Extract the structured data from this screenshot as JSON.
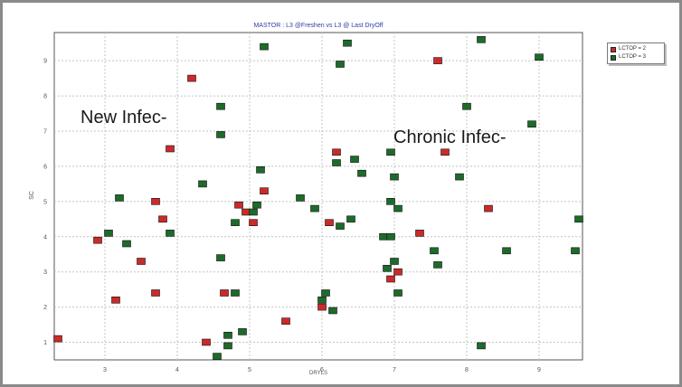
{
  "chart_data": {
    "type": "scatter",
    "title": "MASTOR : L3 @Freshen vs L3 @ Last DryOff",
    "xlabel": "DRYLS",
    "ylabel": "SC",
    "xlim": [
      2.3,
      9.6
    ],
    "ylim": [
      0.5,
      9.8
    ],
    "x_ticks": [
      "3",
      "4",
      "5",
      "6",
      "7",
      "8",
      "9"
    ],
    "y_ticks": [
      "1",
      "2",
      "3",
      "4",
      "5",
      "6",
      "7",
      "8",
      "9"
    ],
    "grid": true,
    "legend_position": "top-right",
    "series": [
      {
        "name": "LCTOP = 2",
        "color": "#cc2a2a",
        "points": [
          [
            2.35,
            1.1
          ],
          [
            2.9,
            3.9
          ],
          [
            3.15,
            2.2
          ],
          [
            3.5,
            3.3
          ],
          [
            3.7,
            2.4
          ],
          [
            3.7,
            5.0
          ],
          [
            3.8,
            4.5
          ],
          [
            3.9,
            6.5
          ],
          [
            4.2,
            8.5
          ],
          [
            4.4,
            1.0
          ],
          [
            4.65,
            2.4
          ],
          [
            4.85,
            4.9
          ],
          [
            4.95,
            4.7
          ],
          [
            5.05,
            4.4
          ],
          [
            5.2,
            5.3
          ],
          [
            5.5,
            1.6
          ],
          [
            6.0,
            2.0
          ],
          [
            6.1,
            4.4
          ],
          [
            6.2,
            6.4
          ],
          [
            6.95,
            2.8
          ],
          [
            7.05,
            3.0
          ],
          [
            7.35,
            4.1
          ],
          [
            7.6,
            9.0
          ],
          [
            7.7,
            6.4
          ],
          [
            8.3,
            4.8
          ]
        ]
      },
      {
        "name": "LCTOP = 3",
        "color": "#1d6b2a",
        "points": [
          [
            3.05,
            4.1
          ],
          [
            3.2,
            5.1
          ],
          [
            3.3,
            3.8
          ],
          [
            3.9,
            4.1
          ],
          [
            4.35,
            5.5
          ],
          [
            4.55,
            0.6
          ],
          [
            4.6,
            3.4
          ],
          [
            4.6,
            6.9
          ],
          [
            4.6,
            7.7
          ],
          [
            4.7,
            0.9
          ],
          [
            4.7,
            1.2
          ],
          [
            4.8,
            2.4
          ],
          [
            4.8,
            4.4
          ],
          [
            4.9,
            1.3
          ],
          [
            5.05,
            4.7
          ],
          [
            5.1,
            4.9
          ],
          [
            5.15,
            5.9
          ],
          [
            5.2,
            9.4
          ],
          [
            5.7,
            5.1
          ],
          [
            5.9,
            4.8
          ],
          [
            6.0,
            2.2
          ],
          [
            6.05,
            2.4
          ],
          [
            6.15,
            1.9
          ],
          [
            6.2,
            6.1
          ],
          [
            6.25,
            4.3
          ],
          [
            6.25,
            8.9
          ],
          [
            6.35,
            9.5
          ],
          [
            6.4,
            4.5
          ],
          [
            6.45,
            6.2
          ],
          [
            6.55,
            5.8
          ],
          [
            6.85,
            4.0
          ],
          [
            6.9,
            3.1
          ],
          [
            6.95,
            4.0
          ],
          [
            6.95,
            5.0
          ],
          [
            6.95,
            6.4
          ],
          [
            7.0,
            3.3
          ],
          [
            7.0,
            5.7
          ],
          [
            7.05,
            2.4
          ],
          [
            7.05,
            4.8
          ],
          [
            7.55,
            3.6
          ],
          [
            7.6,
            3.2
          ],
          [
            7.9,
            5.7
          ],
          [
            8.0,
            7.7
          ],
          [
            8.2,
            0.9
          ],
          [
            8.2,
            9.6
          ],
          [
            8.55,
            3.6
          ],
          [
            8.9,
            7.2
          ],
          [
            9.0,
            9.1
          ],
          [
            9.5,
            3.6
          ],
          [
            9.55,
            4.5
          ]
        ]
      }
    ],
    "annotations": [
      {
        "text": "New Infec-"
      },
      {
        "text": "Chronic Infec-"
      }
    ]
  }
}
